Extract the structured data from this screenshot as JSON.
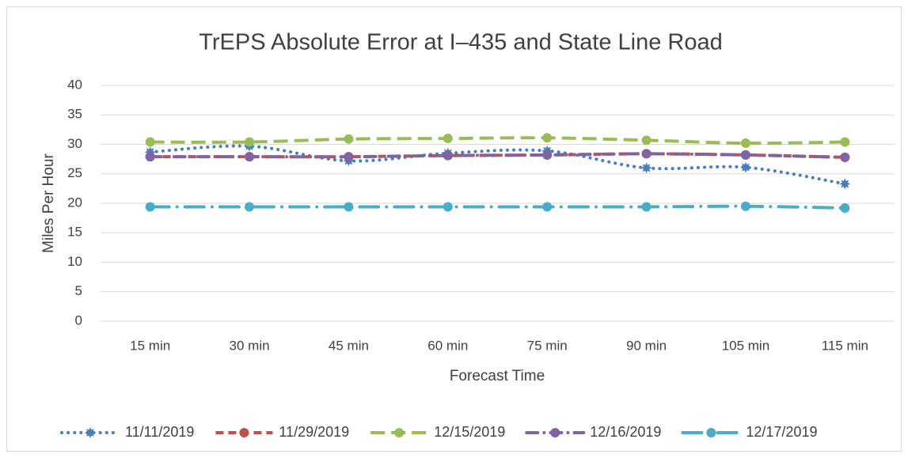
{
  "chart_data": {
    "type": "line",
    "title": "TrEPS Absolute Error at I–435 and State Line Road",
    "x_label": "Forecast Time",
    "y_label": "Miles Per Hour",
    "categories": [
      "15 min",
      "30 min",
      "45 min",
      "60 min",
      "75 min",
      "90 min",
      "105 min",
      "115 min"
    ],
    "ylim": [
      0,
      40
    ],
    "yticks": [
      0,
      5,
      10,
      15,
      20,
      25,
      30,
      35,
      40
    ],
    "grid": true,
    "smooth": true,
    "legend": "bottom",
    "series": [
      {
        "name": "11/11/2019",
        "color": "#4a7ebb",
        "dash": "dotted",
        "marker": "star",
        "values": [
          28.7,
          29.7,
          27.2,
          28.5,
          28.9,
          26.0,
          26.1,
          23.3
        ]
      },
      {
        "name": "11/29/2019",
        "color": "#c0504d",
        "dash": "dashed",
        "marker": "circle",
        "values": [
          27.9,
          27.9,
          27.9,
          28.1,
          28.2,
          28.4,
          28.2,
          27.8
        ]
      },
      {
        "name": "12/15/2019",
        "color": "#9bbb59",
        "dash": "long-dash",
        "marker": "circle",
        "values": [
          30.4,
          30.4,
          30.9,
          31.0,
          31.1,
          30.7,
          30.2,
          30.4
        ]
      },
      {
        "name": "12/16/2019",
        "color": "#8064a2",
        "dash": "dash-dot",
        "marker": "circle",
        "values": [
          27.9,
          27.9,
          27.9,
          28.1,
          28.2,
          28.4,
          28.2,
          27.8
        ]
      },
      {
        "name": "12/17/2019",
        "color": "#4bacc6",
        "dash": "long-dash-dot",
        "marker": "circle",
        "values": [
          19.4,
          19.4,
          19.4,
          19.4,
          19.4,
          19.4,
          19.5,
          19.2
        ]
      }
    ]
  }
}
